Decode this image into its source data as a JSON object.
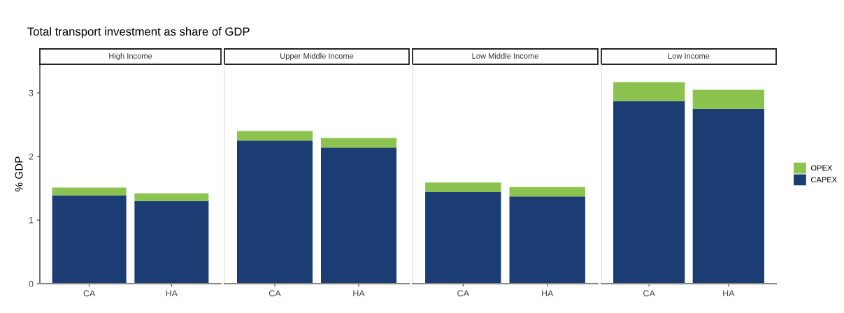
{
  "chart_data": [
    {
      "type": "bar",
      "title": "Total transport investment as share of GDP",
      "subtitle": "High Income",
      "ylabel": "% GDP",
      "categories": [
        "CA",
        "HA"
      ],
      "stacked": true,
      "ylim": [
        0,
        3.45
      ],
      "yticks": [
        0,
        1,
        2,
        3
      ],
      "grid": false,
      "series": [
        {
          "color": "#1b3d73",
          "values": [
            1.39,
            1.3
          ]
        },
        {
          "color": "#8bc34e",
          "values": [
            0.12,
            0.12
          ]
        }
      ]
    },
    {
      "type": "bar",
      "subtitle": "Upper Middle Income",
      "categories": [
        "CA",
        "HA"
      ],
      "stacked": true,
      "ylim": [
        0,
        3.45
      ],
      "grid": false,
      "tick_labels": "x",
      "series": [
        {
          "color": "#1b3d73",
          "values": [
            2.25,
            2.14
          ]
        },
        {
          "color": "#8bc34e",
          "values": [
            0.15,
            0.15
          ]
        }
      ]
    },
    {
      "type": "bar",
      "subtitle": "Low Middle Income",
      "categories": [
        "CA",
        "HA"
      ],
      "stacked": true,
      "ylim": [
        0,
        3.45
      ],
      "grid": false,
      "tick_labels": "x",
      "series": [
        {
          "color": "#1b3d73",
          "values": [
            1.44,
            1.37
          ]
        },
        {
          "color": "#8bc34e",
          "values": [
            0.15,
            0.15
          ]
        }
      ]
    },
    {
      "type": "bar",
      "subtitle": "Low Income",
      "categories": [
        "CA",
        "HA"
      ],
      "stacked": true,
      "ylim": [
        0,
        3.45
      ],
      "legend": "right",
      "grid": false,
      "tick_labels": "x",
      "series": [
        {
          "name": "CAPEX",
          "color": "#1b3d73",
          "values": [
            2.87,
            2.75
          ]
        },
        {
          "name": "OPEX",
          "color": "#8bc34e",
          "values": [
            0.3,
            0.3
          ]
        }
      ]
    }
  ]
}
